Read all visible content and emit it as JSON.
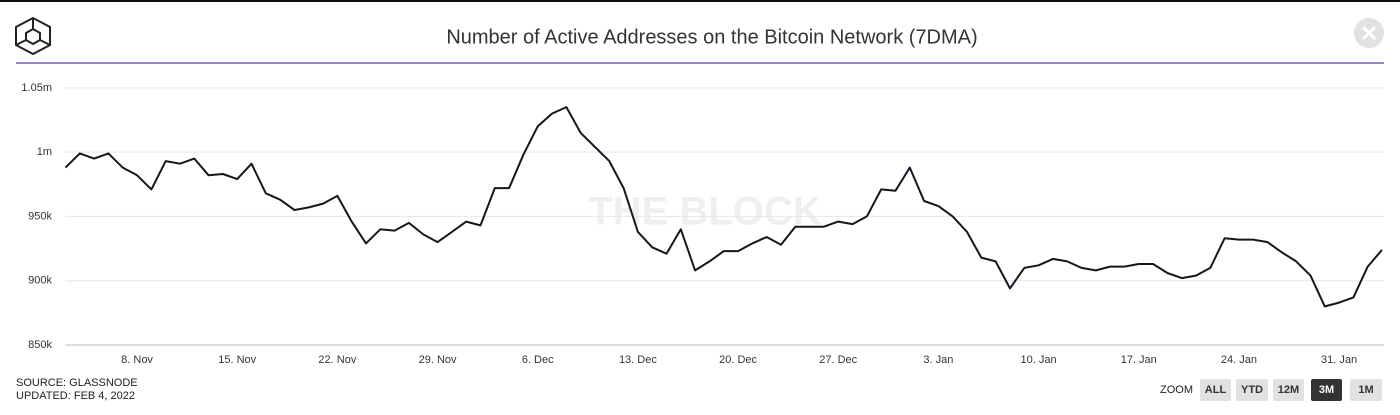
{
  "chart_data": {
    "type": "line",
    "title": "Number of Active Addresses on the Bitcoin Network (7DMA)",
    "watermark": "THE BLOCK",
    "source": "SOURCE: GLASSNODE",
    "updated": "UPDATED: FEB 4, 2022",
    "zoom": {
      "label": "ZOOM",
      "buttons": [
        "ALL",
        "YTD",
        "12M",
        "3M",
        "1M"
      ],
      "active_index": 3
    },
    "grid": true,
    "categories": [
      null,
      null,
      null,
      null,
      null,
      "8. Nov",
      null,
      null,
      null,
      null,
      null,
      null,
      "15. Nov",
      null,
      null,
      null,
      null,
      null,
      null,
      "22. Nov",
      null,
      null,
      null,
      null,
      null,
      null,
      "29. Nov",
      null,
      null,
      null,
      null,
      null,
      null,
      "6. Dec",
      null,
      null,
      null,
      null,
      null,
      null,
      "13. Dec",
      null,
      null,
      null,
      null,
      null,
      null,
      "20. Dec",
      null,
      null,
      null,
      null,
      null,
      null,
      "27. Dec",
      null,
      null,
      null,
      null,
      null,
      null,
      "3. Jan",
      null,
      null,
      null,
      null,
      null,
      null,
      "10. Jan",
      null,
      null,
      null,
      null,
      null,
      null,
      "17. Jan",
      null,
      null,
      null,
      null,
      null,
      null,
      "24. Jan",
      null,
      null,
      null,
      null,
      null,
      null,
      "31. Jan",
      null,
      null,
      null
    ],
    "series": [
      {
        "name": "Active Addresses (7DMA)",
        "color": "#16161f",
        "values": [
          988000,
          999000,
          995000,
          999000,
          988000,
          982000,
          971000,
          993000,
          991000,
          995000,
          982000,
          983000,
          979000,
          991000,
          968000,
          963000,
          955000,
          957000,
          960000,
          966000,
          946000,
          929000,
          940000,
          939000,
          945000,
          936000,
          930000,
          938000,
          946000,
          943000,
          972000,
          972000,
          998000,
          1020000,
          1030000,
          1035000,
          1015000,
          1004000,
          993000,
          972000,
          938000,
          926000,
          921000,
          940000,
          908000,
          915000,
          923000,
          923000,
          929000,
          934000,
          928000,
          942000,
          942000,
          942000,
          946000,
          944000,
          950000,
          971000,
          970000,
          988000,
          962000,
          958000,
          950000,
          938000,
          918000,
          915000,
          894000,
          910000,
          912000,
          917000,
          915000,
          910000,
          908000,
          911000,
          911000,
          913000,
          913000,
          906000,
          902000,
          904000,
          910000,
          933000,
          932000,
          932000,
          930000,
          922000,
          915000,
          904000,
          880000,
          883000,
          887000,
          911000,
          924000
        ]
      }
    ],
    "ylim": [
      850000,
      1060000
    ],
    "yticks": [
      {
        "value": 850000,
        "label": "850k"
      },
      {
        "value": 900000,
        "label": "900k"
      },
      {
        "value": 950000,
        "label": "950k"
      },
      {
        "value": 1000000,
        "label": "1m"
      },
      {
        "value": 1050000,
        "label": "1.05m"
      }
    ]
  }
}
